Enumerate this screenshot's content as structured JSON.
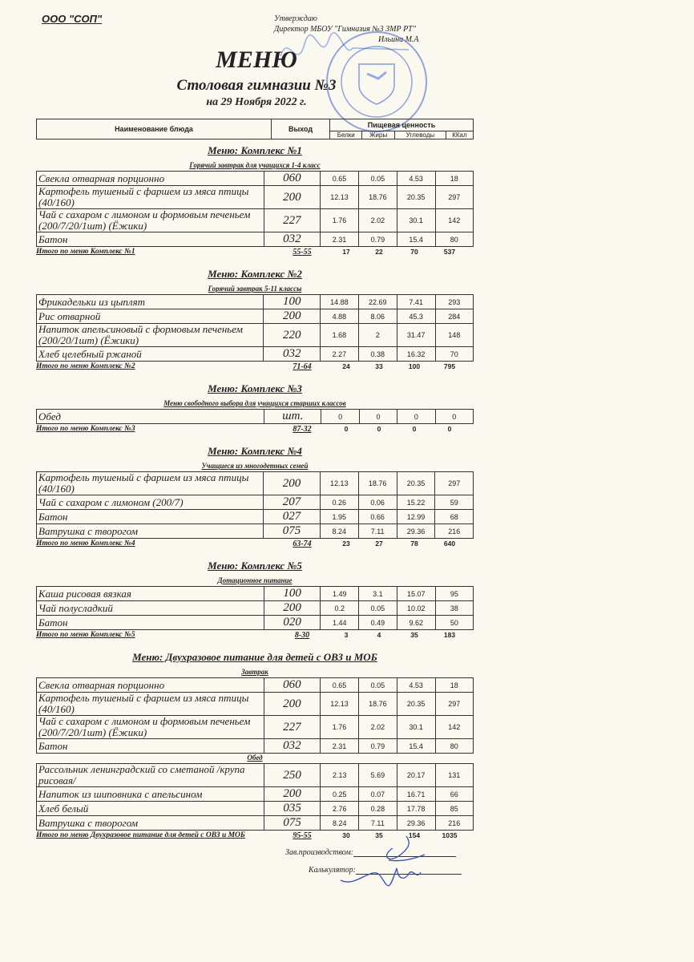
{
  "organization": "ООО \"СОП\"",
  "approval": {
    "line1": "Утверждаю",
    "line2": "Директор МБОУ \"Гимназия №3 ЗМР РТ\"",
    "line3": "Ильина М.А"
  },
  "title": "МЕНЮ",
  "subtitle": "Столовая гимназии №3",
  "date": "на 29 Ноября 2022 г.",
  "header": {
    "name": "Наименование блюда",
    "output": "Выход",
    "nutrition": "Пищевая ценность",
    "proteins": "Белки",
    "fats": "Жиры",
    "carbs": "Углеводы",
    "kcal": "ККал"
  },
  "menus": [
    {
      "title": "Меню: Комплекс №1",
      "groups": [
        {
          "subtitle": "Горячий завтрак для учащихся 1-4 класс",
          "rows": [
            [
              "Свекла отварная порционно",
              "060",
              "0.65",
              "0.05",
              "4.53",
              "18"
            ],
            [
              "Картофель тушеный с фаршем из мяса птицы (40/160)",
              "200",
              "12.13",
              "18.76",
              "20.35",
              "297"
            ],
            [
              "Чай с сахаром с лимоном и формовым печеньем (200/7/20/1шт) (Ёжики)",
              "227",
              "1.76",
              "2.02",
              "30.1",
              "142"
            ],
            [
              "Батон",
              "032",
              "2.31",
              "0.79",
              "15.4",
              "80"
            ]
          ]
        }
      ],
      "total": [
        "Итого по меню Комплекс №1",
        "55-55",
        "17",
        "22",
        "70",
        "537"
      ]
    },
    {
      "title": "Меню: Комплекс №2",
      "groups": [
        {
          "subtitle": "Горячий завтрак 5-11 классы",
          "rows": [
            [
              "Фрикадельки из цыплят",
              "100",
              "14.88",
              "22.69",
              "7.41",
              "293"
            ],
            [
              "Рис отварной",
              "200",
              "4.88",
              "8.06",
              "45.3",
              "284"
            ],
            [
              "Напиток апельсиновый с формовым печеньем (200/20/1шт) (Ёжики)",
              "220",
              "1.68",
              "2",
              "31.47",
              "148"
            ],
            [
              "Хлеб  целебный ржаной",
              "032",
              "2.27",
              "0.38",
              "16.32",
              "70"
            ]
          ]
        }
      ],
      "total": [
        "Итого по меню Комплекс №2",
        "71-64",
        "24",
        "33",
        "100",
        "795"
      ]
    },
    {
      "title": "Меню: Комплекс №3",
      "groups": [
        {
          "subtitle": "Меню свободного выбора для учащихся старших классов",
          "rows": [
            [
              "Обед",
              "шт.",
              "0",
              "0",
              "0",
              "0"
            ]
          ]
        }
      ],
      "total": [
        "Итого по меню Комплекс №3",
        "87-32",
        "0",
        "0",
        "0",
        "0"
      ]
    },
    {
      "title": "Меню: Комплекс №4",
      "groups": [
        {
          "subtitle": "Учащиеся из многодетных семей",
          "rows": [
            [
              "Картофель тушеный с фаршем из мяса птицы (40/160)",
              "200",
              "12.13",
              "18.76",
              "20.35",
              "297"
            ],
            [
              "Чай с сахаром с лимоном (200/7)",
              "207",
              "0.26",
              "0.06",
              "15.22",
              "59"
            ],
            [
              "Батон",
              "027",
              "1.95",
              "0.66",
              "12.99",
              "68"
            ],
            [
              "Ватрушка с творогом",
              "075",
              "8.24",
              "7.11",
              "29.36",
              "216"
            ]
          ]
        }
      ],
      "total": [
        "Итого по меню Комплекс №4",
        "63-74",
        "23",
        "27",
        "78",
        "640"
      ]
    },
    {
      "title": "Меню: Комплекс №5",
      "groups": [
        {
          "subtitle": "Дотационное питание",
          "rows": [
            [
              "Каша рисовая вязкая",
              "100",
              "1.49",
              "3.1",
              "15.07",
              "95"
            ],
            [
              "Чай полусладкий",
              "200",
              "0.2",
              "0.05",
              "10.02",
              "38"
            ],
            [
              "Батон",
              "020",
              "1.44",
              "0.49",
              "9.62",
              "50"
            ]
          ]
        }
      ],
      "total": [
        "Итого по меню Комплекс №5",
        "8-30",
        "3",
        "4",
        "35",
        "183"
      ]
    },
    {
      "title": "Меню: Двухразовое питание для детей с ОВЗ и МОБ",
      "groups": [
        {
          "subtitle": "Завтрак",
          "rows": [
            [
              "Свекла отварная порционно",
              "060",
              "0.65",
              "0.05",
              "4.53",
              "18"
            ],
            [
              "Картофель тушеный с фаршем из мяса птицы (40/160)",
              "200",
              "12.13",
              "18.76",
              "20.35",
              "297"
            ],
            [
              "Чай с сахаром с лимоном и формовым печеньем (200/7/20/1шт) (Ёжики)",
              "227",
              "1.76",
              "2.02",
              "30.1",
              "142"
            ],
            [
              "Батон",
              "032",
              "2.31",
              "0.79",
              "15.4",
              "80"
            ]
          ]
        },
        {
          "subtitle": "Обед",
          "rows": [
            [
              "Рассольник ленинградский со сметаной /крупа рисовая/",
              "250",
              "2.13",
              "5.69",
              "20.17",
              "131"
            ],
            [
              "Напиток из шиповника с апельсином",
              "200",
              "0.25",
              "0.07",
              "16.71",
              "66"
            ],
            [
              "Хлеб белый",
              "035",
              "2.76",
              "0.28",
              "17.78",
              "85"
            ],
            [
              "Ватрушка с творогом",
              "075",
              "8.24",
              "7.11",
              "29.36",
              "216"
            ]
          ]
        }
      ],
      "total": [
        "Итого по меню Двухразовое питание для детей с ОВЗ и МОБ",
        "95-55",
        "30",
        "35",
        "154",
        "1035"
      ]
    }
  ],
  "signatures": {
    "production": "Зав.производством:",
    "calculator": "Калькулятор:"
  },
  "colors": {
    "paper": "#fbf8f0",
    "stamp": "#3a5fc8",
    "ink": "#222222"
  }
}
